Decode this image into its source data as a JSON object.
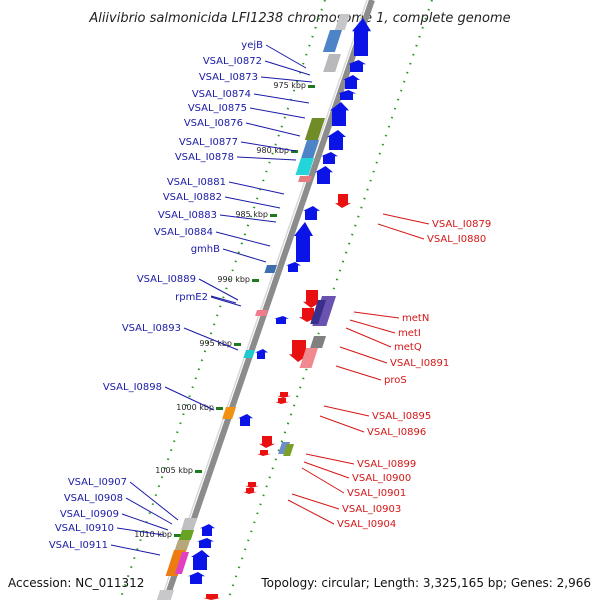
{
  "title": "Aliivibrio salmonicida LFI1238 chromosome 1, complete genome",
  "footer": {
    "accession": "Accession: NC_011312",
    "topology": "Topology: circular; Length: 3,325,165 bp; Genes: 2,966"
  },
  "colors": {
    "left_label": "#1a1aa6",
    "right_label": "#d41616",
    "fwd_gene": "#0a14e6",
    "rev_gene": "#e81010",
    "backbone": "#8c8c8c",
    "tick": "#1f7a1f"
  },
  "ticks": [
    "975 kbp",
    "980 kbp",
    "985 kbp",
    "990 kbp",
    "995 kbp",
    "1000 kbp",
    "1005 kbp",
    "1010 kbp"
  ],
  "left_labels": [
    "yejB",
    "VSAL_I0872",
    "VSAL_I0873",
    "VSAL_I0874",
    "VSAL_I0875",
    "VSAL_I0876",
    "VSAL_I0877",
    "VSAL_I0878",
    "VSAL_I0881",
    "VSAL_I0882",
    "VSAL_I0883",
    "VSAL_I0884",
    "gmhB",
    "VSAL_I0889",
    "rpmE2",
    "VSAL_I0893",
    "VSAL_I0898",
    "VSAL_I0907",
    "VSAL_I0908",
    "VSAL_I0909",
    "VSAL_I0910",
    "VSAL_I0911"
  ],
  "right_labels": [
    "VSAL_I0879",
    "VSAL_I0880",
    "metN",
    "metI",
    "metQ",
    "VSAL_I0891",
    "proS",
    "VSAL_I0895",
    "VSAL_I0896",
    "VSAL_I0899",
    "VSAL_I0900",
    "VSAL_I0901",
    "VSAL_I0903",
    "VSAL_I0904"
  ]
}
